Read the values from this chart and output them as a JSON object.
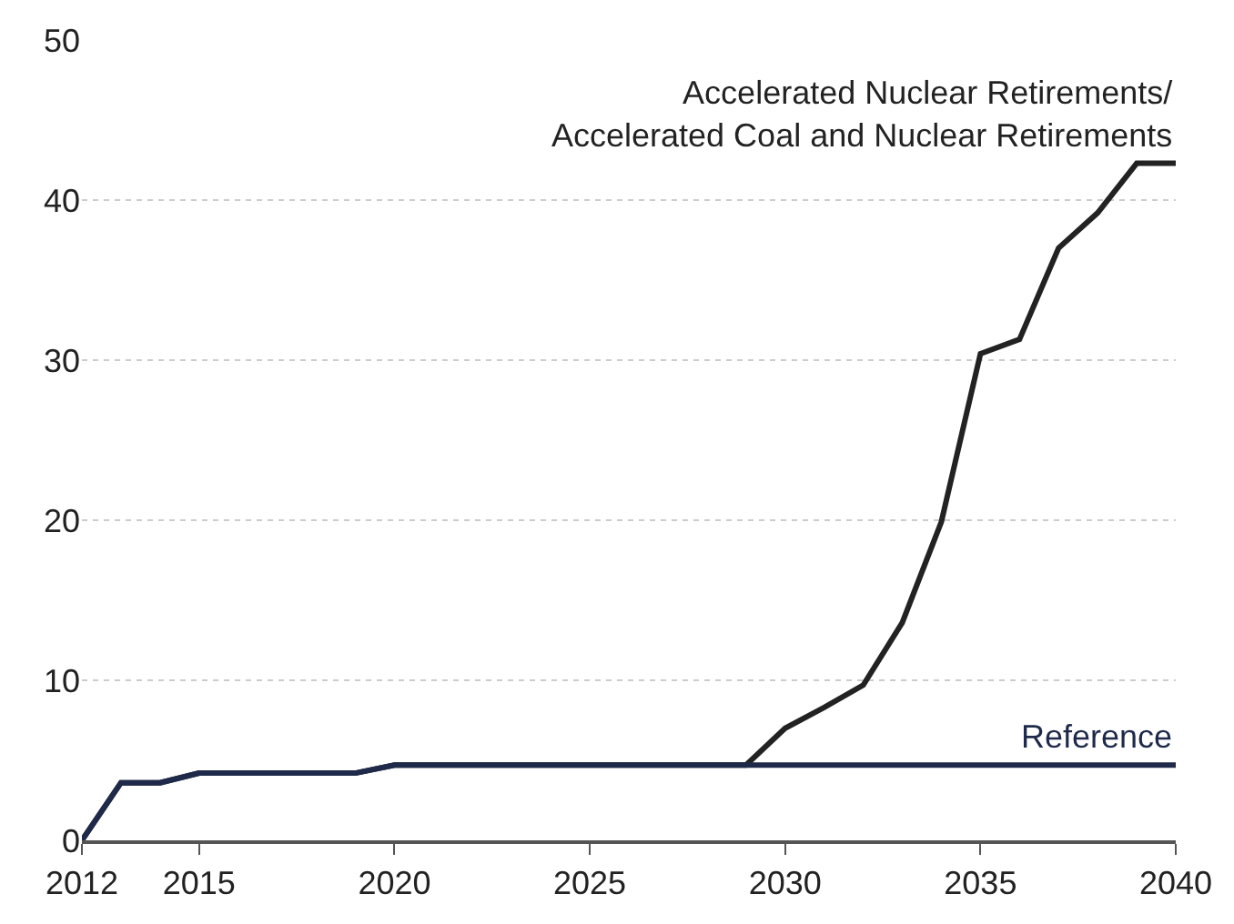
{
  "chart_data": {
    "type": "line",
    "x": [
      2012,
      2013,
      2014,
      2015,
      2016,
      2017,
      2018,
      2019,
      2020,
      2021,
      2022,
      2023,
      2024,
      2025,
      2026,
      2027,
      2028,
      2029,
      2030,
      2031,
      2032,
      2033,
      2034,
      2035,
      2036,
      2037,
      2038,
      2039,
      2040
    ],
    "series": [
      {
        "name": "Accelerated Nuclear Retirements/\nAccelerated Coal and Nuclear Retirements",
        "color": "#222222",
        "values": [
          0,
          3.6,
          3.6,
          4.2,
          4.2,
          4.2,
          4.2,
          4.2,
          4.7,
          4.7,
          4.7,
          4.7,
          4.7,
          4.7,
          4.7,
          4.7,
          4.7,
          4.7,
          7.0,
          8.3,
          9.7,
          13.6,
          19.9,
          30.4,
          31.3,
          37.0,
          39.2,
          42.3,
          42.3
        ]
      },
      {
        "name": "Reference",
        "color": "#1f2a4a",
        "values": [
          0,
          3.6,
          3.6,
          4.2,
          4.2,
          4.2,
          4.2,
          4.2,
          4.7,
          4.7,
          4.7,
          4.7,
          4.7,
          4.7,
          4.7,
          4.7,
          4.7,
          4.7,
          4.7,
          4.7,
          4.7,
          4.7,
          4.7,
          4.7,
          4.7,
          4.7,
          4.7,
          4.7,
          4.7
        ]
      }
    ],
    "xlim": [
      2012,
      2040
    ],
    "xticks": [
      2012,
      2015,
      2020,
      2025,
      2030,
      2035,
      2040
    ],
    "ylim": [
      0,
      50
    ],
    "yticks": [
      0,
      10,
      20,
      30,
      40,
      50
    ],
    "grid": "y",
    "legend": false,
    "marker": "none",
    "line_style": "solid"
  }
}
